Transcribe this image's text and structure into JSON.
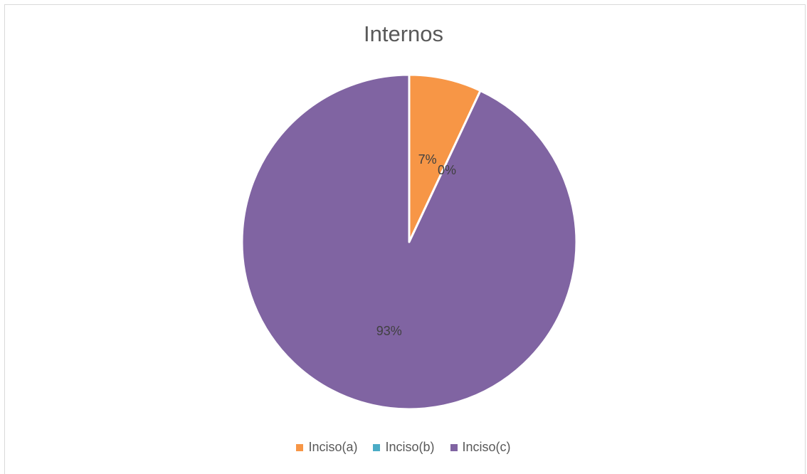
{
  "chart_data": {
    "type": "pie",
    "title": "Internos",
    "categories": [
      "Inciso(a)",
      "Inciso(b)",
      "Inciso(c)"
    ],
    "values": [
      7,
      0,
      93
    ],
    "data_labels": [
      "7%",
      "0%",
      "93%"
    ],
    "colors": [
      "#f79646",
      "#4bacc6",
      "#8064a2"
    ],
    "legend_position": "bottom",
    "start_angle": "top (12 o'clock), clockwise"
  }
}
